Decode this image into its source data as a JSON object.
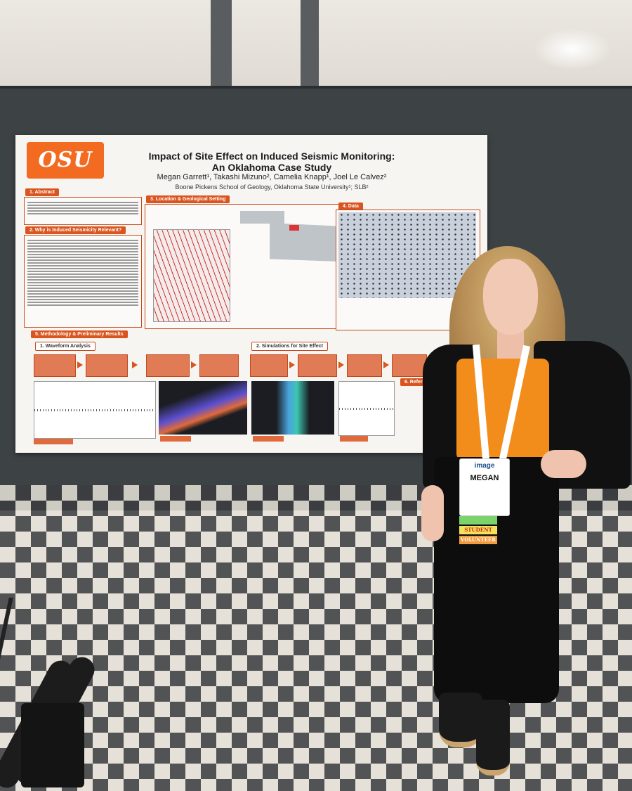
{
  "poster": {
    "logo": "OSU",
    "title_line1": "Impact of Site Effect on Induced Seismic Monitoring:",
    "title_line2": "An Oklahoma Case Study",
    "authors": "Megan Garrett¹, Takashi Mizuno², Camelia Knapp¹, Joel Le Calvez²",
    "affiliation": "Boone Pickens School of Geology, Oklahoma State University¹; SLB²",
    "sections": {
      "abstract": "1. Abstract",
      "relevance": "2. Why is Induced Seismicity Relevant?",
      "location": "3. Location & Geological Setting",
      "data": "4. Data",
      "methodology": "5. Methodology & Preliminary Results",
      "waveform": "1. Waveform Analysis",
      "simulations": "2. Simulations for Site Effect",
      "references": "6. References & Acknowledgements"
    }
  },
  "badge": {
    "brand": "image",
    "name": "MEGAN",
    "ribbon_student": "STUDENT",
    "ribbon_volunteer": "VOLUNTEER"
  },
  "colors": {
    "osu_orange": "#f26b21",
    "section_orange": "#d9541e",
    "top_orange": "#f28d1b"
  }
}
